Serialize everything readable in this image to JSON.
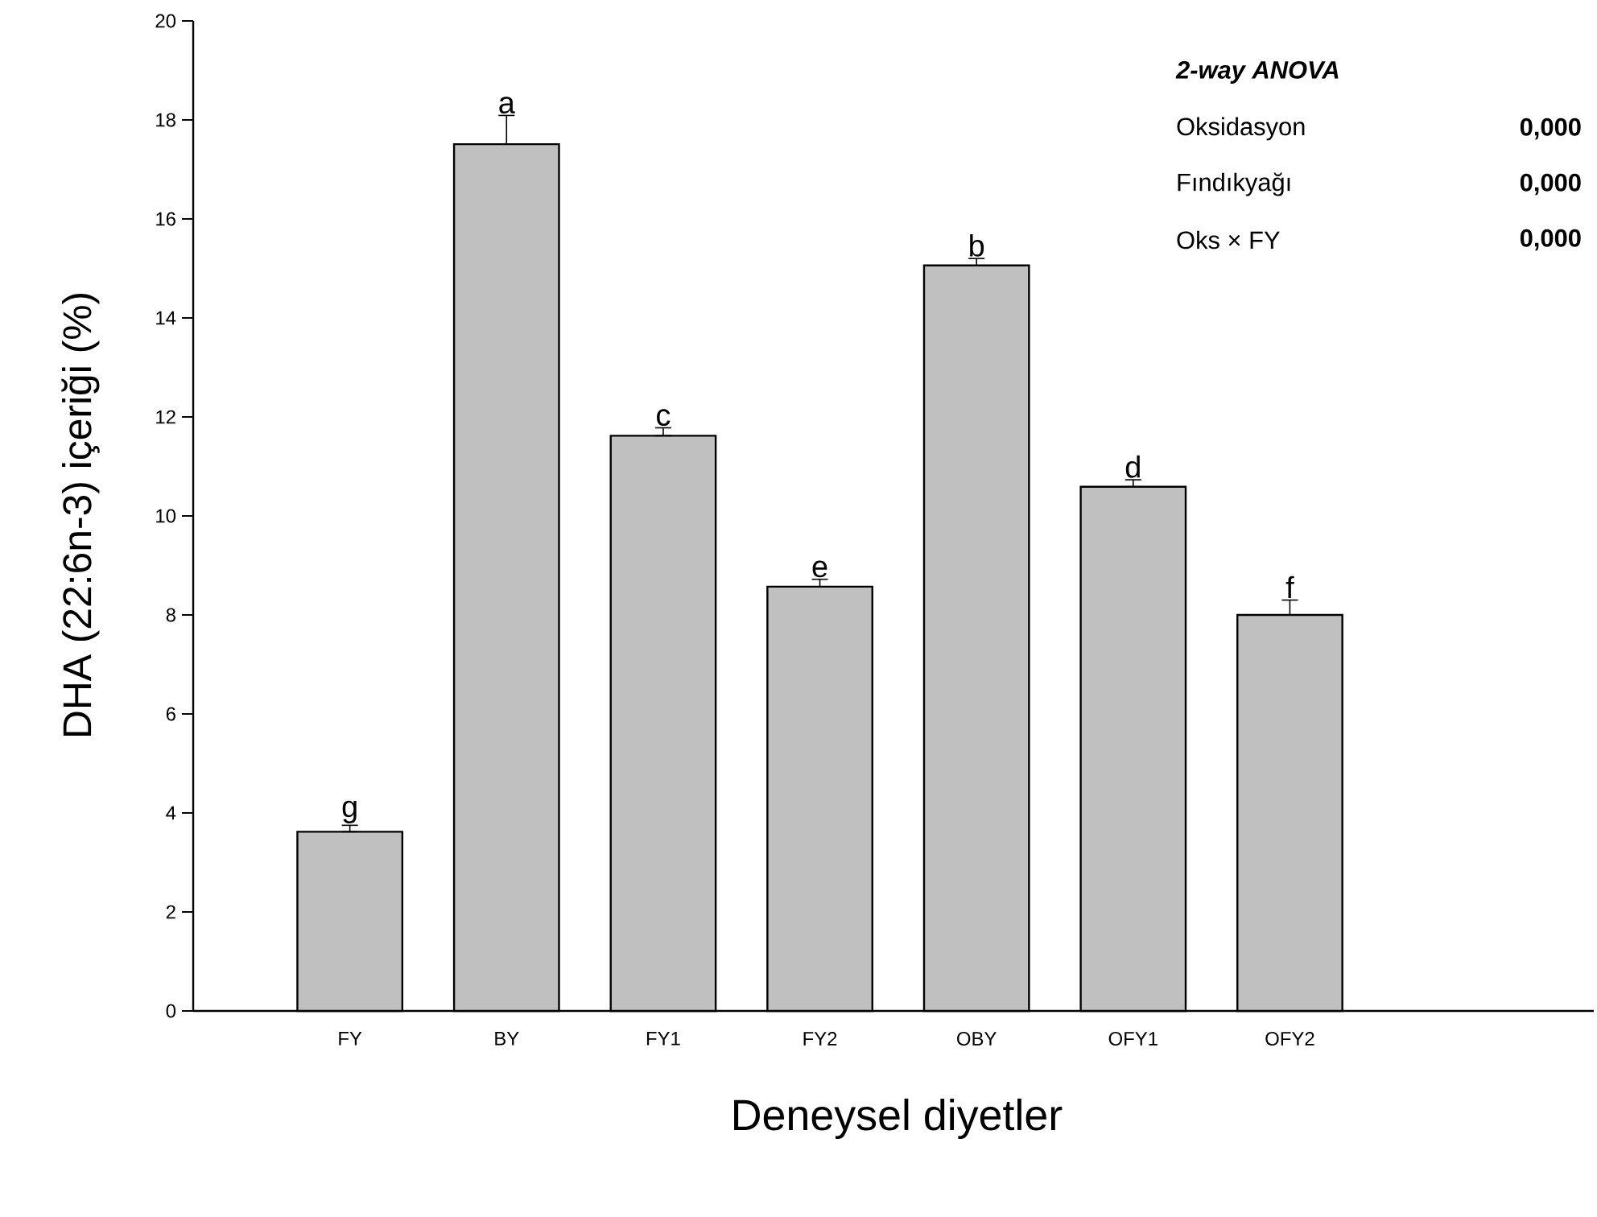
{
  "chart_data": {
    "type": "bar",
    "xlabel": "Deneysel diyetler",
    "ylabel": "DHA (22:6n-3) içeriği (%)",
    "categories": [
      "FY",
      "BY",
      "FY1",
      "FY2",
      "OBY",
      "OFY1",
      "OFY2"
    ],
    "values": [
      3.62,
      17.51,
      11.62,
      8.57,
      15.06,
      10.59,
      8.0
    ],
    "errors": [
      [
        3.62,
        3.75
      ],
      [
        17.51,
        18.09
      ],
      [
        11.62,
        11.78
      ],
      [
        8.57,
        8.72
      ],
      [
        15.06,
        15.2
      ],
      [
        10.59,
        10.73
      ],
      [
        8.0,
        8.3
      ]
    ],
    "color": "#c0c0c0",
    "ylim": [
      0,
      20
    ],
    "yticks": [
      0,
      2,
      4,
      6,
      8,
      10,
      12,
      14,
      16,
      18,
      20
    ],
    "annotations": [
      {
        "text": "g",
        "x": "FY",
        "y": 3.75
      },
      {
        "text": "a",
        "x": "BY",
        "y": 18.09
      },
      {
        "text": "c",
        "x": "FY1",
        "y": 11.78
      },
      {
        "text": "e",
        "x": "FY2",
        "y": 8.72
      },
      {
        "text": "b",
        "x": "OBY",
        "y": 15.2
      },
      {
        "text": "d",
        "x": "OFY1",
        "y": 10.73
      },
      {
        "text": "f",
        "x": "OFY2",
        "y": 8.3
      },
      "2-way ANOVA",
      "Oksidasyon",
      "0,000",
      "Fındıkyağı",
      "0,000",
      "Oks × FY",
      "0,000"
    ]
  }
}
